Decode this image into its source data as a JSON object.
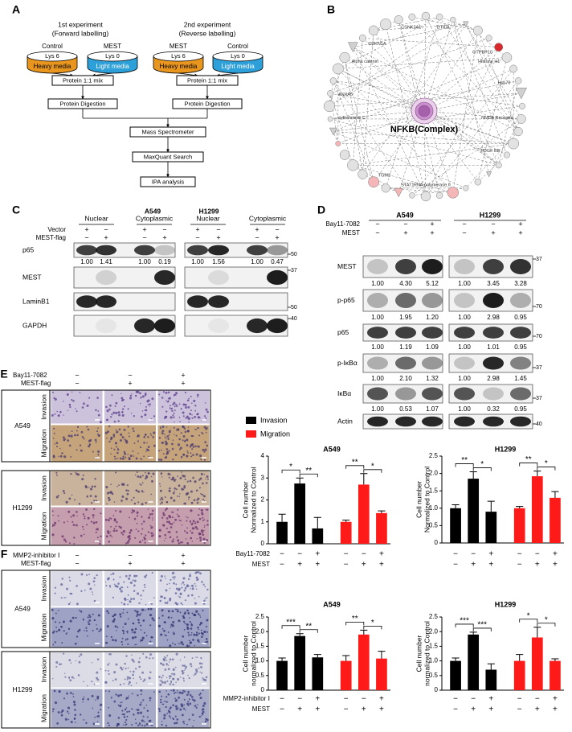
{
  "panel_a": {
    "label": "A",
    "experiments": [
      {
        "title": "1st experiment",
        "subtitle": "(Forward labelling)"
      },
      {
        "title": "2nd experiment",
        "subtitle": "(Reverse labelling)"
      }
    ],
    "dishes": [
      {
        "sample": "Control",
        "lysine": "Lys 6",
        "media": "Heavy media"
      },
      {
        "sample": "MEST",
        "lysine": "Lys 0",
        "media": "Light media"
      },
      {
        "sample": "MEST",
        "lysine": "Lys 6",
        "media": "Heavy media"
      },
      {
        "sample": "Control",
        "lysine": "Lys 0",
        "media": "Light media"
      }
    ],
    "steps": {
      "mix": "Protein 1:1 mix",
      "digestion": "Protein Digestion",
      "ms": "Mass Spectrometer",
      "search": "MaxQuant Search",
      "ipa": "IPA analysis"
    }
  },
  "panel_b": {
    "label": "B",
    "hub": "NFKB(Complex)",
    "nodes": [
      "CSNK2A1",
      "CDKN1A",
      "DTX3L",
      "GTPBP10",
      "Histone H1",
      "Hsp70",
      "NMDA Receptor",
      "PDGF BB",
      "RNA polymerase II",
      "STAT1",
      "TGM2",
      "cytochrome C",
      "ANXA5",
      "Alpha catenin"
    ]
  },
  "panel_c": {
    "label": "C",
    "cell_lines": [
      "A549",
      "H1299"
    ],
    "fractions": [
      "Nuclear",
      "Cytoplasmic"
    ],
    "treatments": [
      {
        "name": "Vector",
        "signs": [
          "+",
          "−",
          "+",
          "−",
          "+",
          "−",
          "+",
          "−"
        ]
      },
      {
        "name": "MEST-flag",
        "signs": [
          "−",
          "+",
          "−",
          "+",
          "−",
          "+",
          "−",
          "+"
        ]
      }
    ],
    "blots": [
      {
        "name": "p65",
        "quant": [
          "1.00",
          "1.41",
          "1.00",
          "0.19",
          "1.00",
          "1.56",
          "1.00",
          "0.47"
        ],
        "marker": "50"
      },
      {
        "name": "MEST",
        "marker": "37"
      },
      {
        "name": "LaminB1",
        "marker": "50"
      },
      {
        "name": "GAPDH",
        "marker": "40"
      }
    ]
  },
  "panel_d": {
    "label": "D",
    "cell_lines": [
      "A549",
      "H1299"
    ],
    "treatments": [
      {
        "name": "Bay11-7082",
        "signs": [
          "−",
          "−",
          "+",
          "−",
          "−",
          "+"
        ]
      },
      {
        "name": "MEST",
        "signs": [
          "−",
          "+",
          "+",
          "−",
          "+",
          "+"
        ]
      }
    ],
    "blots": [
      {
        "name": "MEST",
        "quant": [
          "1.00",
          "4.30",
          "5.12",
          "1.00",
          "3.45",
          "3.28"
        ],
        "marker": "37"
      },
      {
        "name": "p-p65",
        "quant": [
          "1.00",
          "1.95",
          "1.20",
          "1.00",
          "2.98",
          "0.95"
        ],
        "marker": "70"
      },
      {
        "name": "p65",
        "quant": [
          "1.00",
          "1.19",
          "1.09",
          "1.00",
          "1.01",
          "0.95"
        ],
        "marker": "70"
      },
      {
        "name": "p-IκBα",
        "quant": [
          "1.00",
          "2.10",
          "1.32",
          "1.00",
          "2.98",
          "1.45"
        ],
        "marker": "37"
      },
      {
        "name": "IκBα",
        "quant": [
          "1.00",
          "0.53",
          "1.07",
          "1.00",
          "0.32",
          "0.95"
        ],
        "marker": "37"
      },
      {
        "name": "Actin",
        "marker": "40"
      }
    ]
  },
  "panel_e": {
    "label": "E",
    "treatments": [
      {
        "name": "Bay11-7082",
        "signs": [
          "−",
          "−",
          "+"
        ]
      },
      {
        "name": "MEST-flag",
        "signs": [
          "−",
          "+",
          "+"
        ]
      }
    ],
    "cell_lines": [
      "A549",
      "H1299"
    ],
    "assays": [
      "Invasion",
      "Migration"
    ]
  },
  "panel_f": {
    "label": "F",
    "treatments": [
      {
        "name": "MMP2-inhibitor Ⅰ",
        "signs": [
          "−",
          "−",
          "+"
        ]
      },
      {
        "name": "MEST-flag",
        "signs": [
          "−",
          "+",
          "+"
        ]
      }
    ],
    "cell_lines": [
      "A549",
      "H1299"
    ],
    "assays": [
      "Invasion",
      "Migration"
    ]
  },
  "chart_data": [
    {
      "type": "bar",
      "title": "A549",
      "ylabel": [
        "Cell number",
        "Normalized to Control"
      ],
      "series": [
        {
          "name": "Invasion",
          "color": "#000000",
          "values": [
            1.0,
            2.75,
            0.7
          ],
          "errors": [
            0.35,
            0.25,
            0.5
          ]
        },
        {
          "name": "Migration",
          "color": "#ff1a1a",
          "values": [
            1.0,
            2.7,
            1.4
          ],
          "errors": [
            0.08,
            0.5,
            0.1
          ]
        }
      ],
      "ylim": [
        0,
        4
      ],
      "yticks": [
        0,
        1,
        2,
        3,
        4
      ],
      "significance": [
        "*",
        "**",
        "**",
        "*"
      ],
      "treatments": [
        {
          "name": "Bay11-7082",
          "signs": [
            "−",
            "−",
            "+",
            "−",
            "−",
            "+"
          ]
        },
        {
          "name": "MEST",
          "signs": [
            "−",
            "+",
            "+",
            "−",
            "+",
            "+"
          ]
        }
      ]
    },
    {
      "type": "bar",
      "title": "H1299",
      "ylabel": [
        "Cell number",
        "Normalized to Control"
      ],
      "series": [
        {
          "color": "#000000",
          "values": [
            1.0,
            1.85,
            0.9
          ],
          "errors": [
            0.1,
            0.2,
            0.3
          ]
        },
        {
          "color": "#ff1a1a",
          "values": [
            1.0,
            1.92,
            1.3
          ],
          "errors": [
            0.05,
            0.15,
            0.18
          ]
        }
      ],
      "ylim": [
        0,
        2.5
      ],
      "yticks": [
        0,
        0.5,
        {
          "value": 1,
          "label": "1.0"
        },
        1.5,
        {
          "value": 2,
          "label": "2.0"
        },
        2.5
      ],
      "significance": [
        "**",
        "*",
        "**",
        "*"
      ],
      "treatments": [
        {
          "signs": [
            "−",
            "−",
            "+",
            "−",
            "−",
            "+"
          ]
        },
        {
          "signs": [
            "−",
            "+",
            "+",
            "−",
            "+",
            "+"
          ]
        }
      ]
    },
    {
      "type": "bar",
      "title": "A549",
      "ylabel": [
        "Cell number",
        "normalized to Control"
      ],
      "series": [
        {
          "color": "#000000",
          "values": [
            1.0,
            1.85,
            1.12
          ],
          "errors": [
            0.1,
            0.08,
            0.1
          ]
        },
        {
          "color": "#ff1a1a",
          "values": [
            1.0,
            1.9,
            1.08
          ],
          "errors": [
            0.18,
            0.15,
            0.25
          ]
        }
      ],
      "ylim": [
        0,
        2.5
      ],
      "yticks": [
        0,
        0.5,
        {
          "value": 1,
          "label": "1.0"
        },
        1.5,
        {
          "value": 2,
          "label": "2.0"
        },
        2.5
      ],
      "significance": [
        "***",
        "**",
        "**",
        "*"
      ],
      "treatments": [
        {
          "name": "MMP2-inhibitor Ⅰ",
          "signs": [
            "−",
            "−",
            "+",
            "−",
            "−",
            "+"
          ]
        },
        {
          "name": "MEST",
          "signs": [
            "−",
            "+",
            "+",
            "−",
            "+",
            "+"
          ]
        }
      ]
    },
    {
      "type": "bar",
      "title": "H1299",
      "ylabel": [
        "Cell number",
        "normalized to Control"
      ],
      "series": [
        {
          "color": "#000000",
          "values": [
            1.0,
            1.9,
            0.7
          ],
          "errors": [
            0.1,
            0.08,
            0.2
          ]
        },
        {
          "color": "#ff1a1a",
          "values": [
            1.0,
            1.8,
            1.0
          ],
          "errors": [
            0.22,
            0.35,
            0.07
          ]
        }
      ],
      "ylim": [
        0,
        2.5
      ],
      "yticks": [
        0,
        0.5,
        {
          "value": 1,
          "label": "1.0"
        },
        1.5,
        {
          "value": 2,
          "label": "2.0"
        },
        2.5
      ],
      "significance": [
        "***",
        "***",
        "*",
        "*"
      ],
      "treatments": [
        {
          "signs": [
            "−",
            "−",
            "+",
            "−",
            "−",
            "+"
          ]
        },
        {
          "signs": [
            "−",
            "+",
            "+",
            "−",
            "+",
            "+"
          ]
        }
      ]
    }
  ]
}
